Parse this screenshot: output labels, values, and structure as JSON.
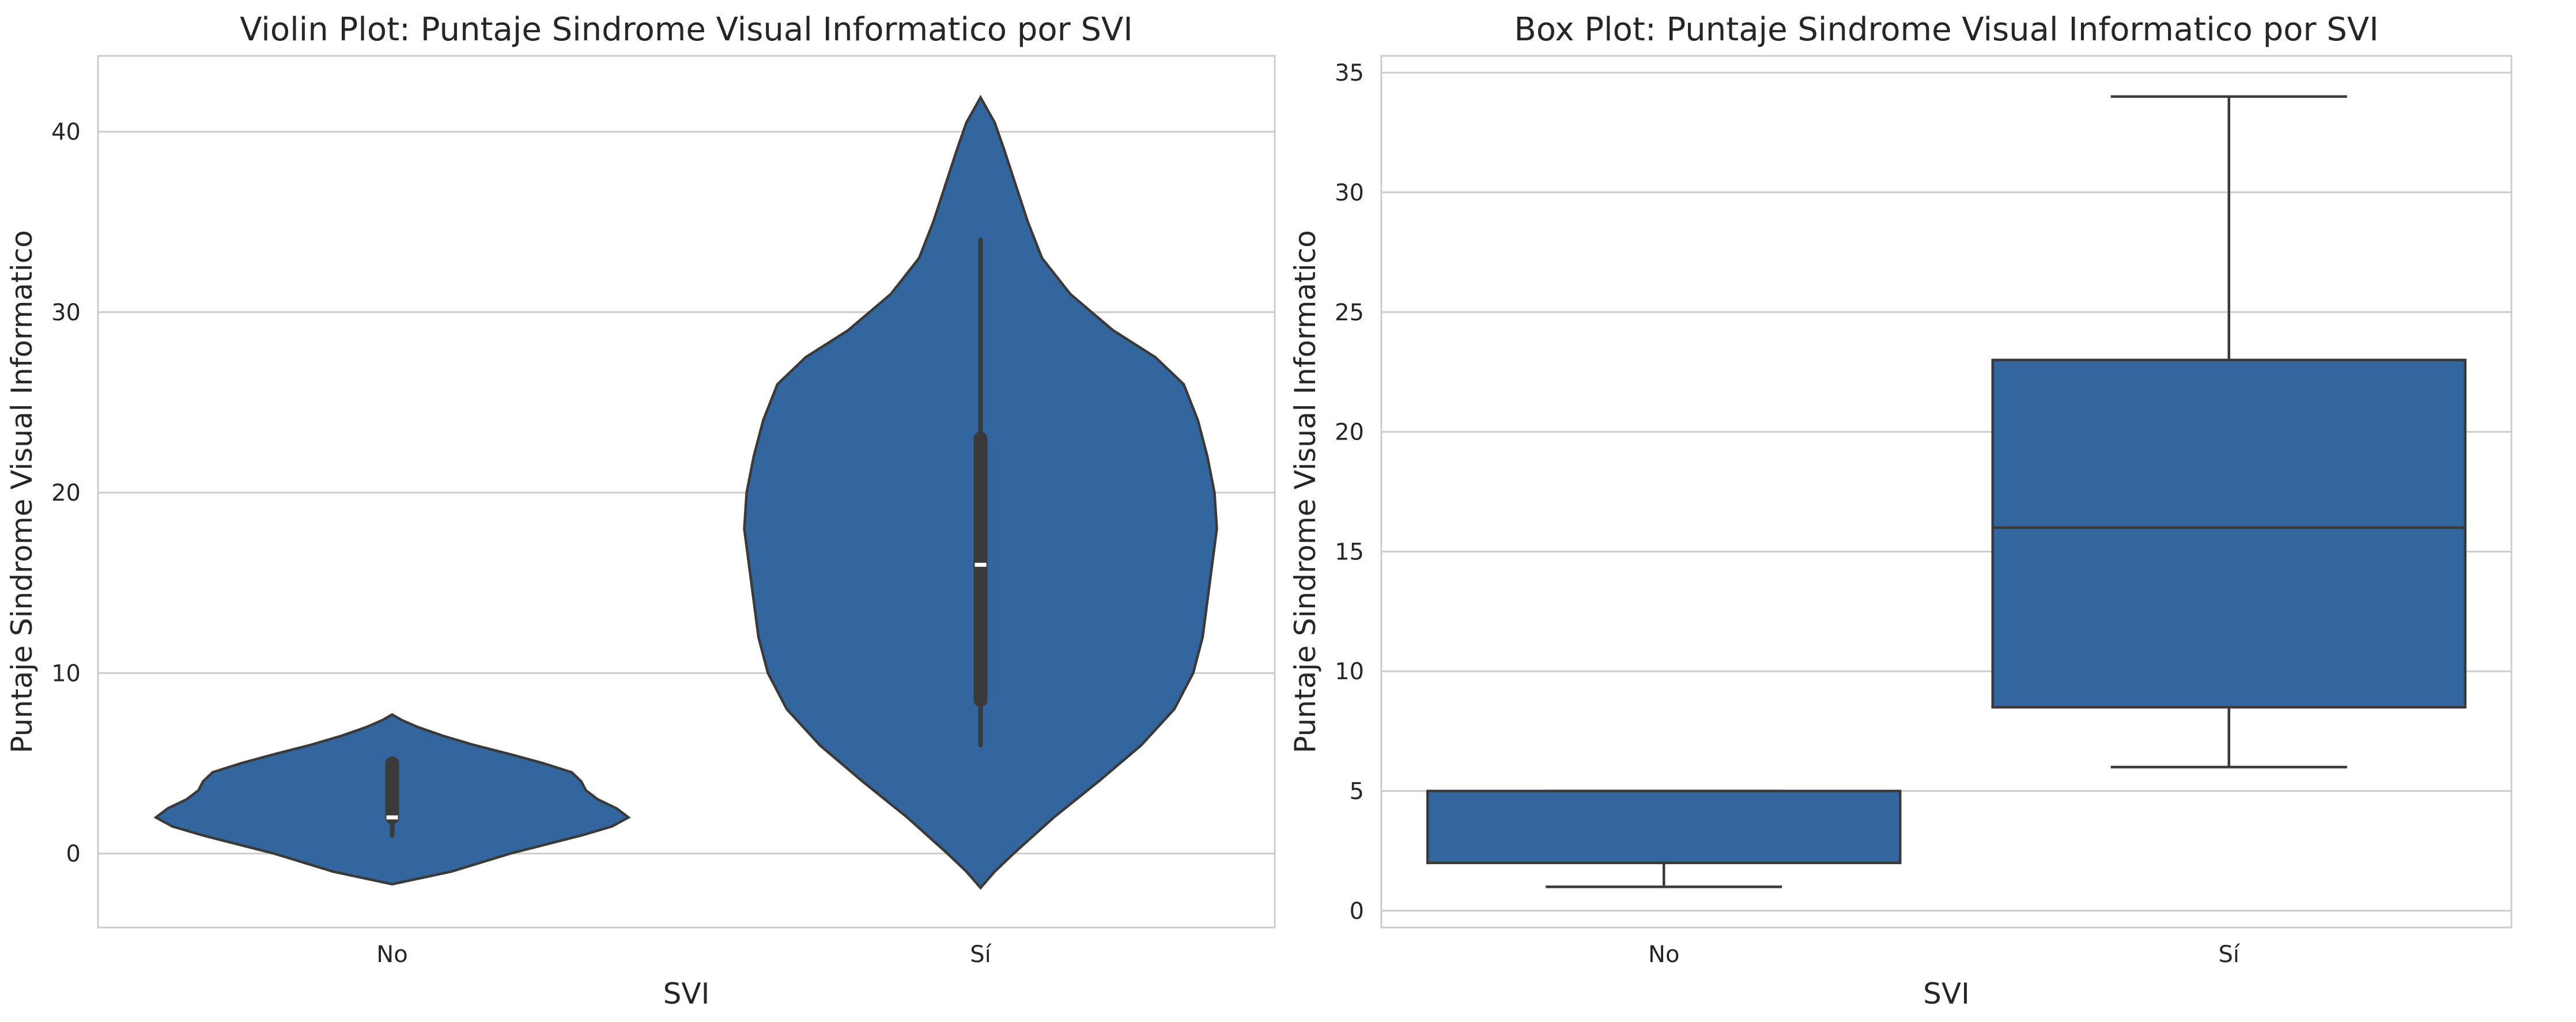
{
  "chart_data": [
    {
      "type": "violin",
      "title": "Violin Plot: Puntaje Sindrome Visual Informatico por SVI",
      "xlabel": "SVI",
      "ylabel": "Puntaje Sindrome Visual Informatico",
      "ylim": [
        -4.1,
        44.2
      ],
      "yticks": [
        0,
        10,
        20,
        30,
        40
      ],
      "grid": "horizontal",
      "categories": [
        "No",
        "Sí"
      ],
      "series": [
        {
          "category": "No",
          "min": 1,
          "q1": 2,
          "median": 2,
          "q3": 5,
          "max": 5,
          "kde_range": [
            -1.7,
            7.7
          ],
          "density": [
            [
              -1.7,
              0.0
            ],
            [
              -1.0,
              0.25
            ],
            [
              0.0,
              0.5
            ],
            [
              1.0,
              0.8
            ],
            [
              1.5,
              0.93
            ],
            [
              2.0,
              1.0
            ],
            [
              2.5,
              0.95
            ],
            [
              3.0,
              0.87
            ],
            [
              3.5,
              0.82
            ],
            [
              4.0,
              0.8
            ],
            [
              4.5,
              0.76
            ],
            [
              5.0,
              0.64
            ],
            [
              5.5,
              0.5
            ],
            [
              6.0,
              0.35
            ],
            [
              6.5,
              0.22
            ],
            [
              7.0,
              0.11
            ],
            [
              7.4,
              0.04
            ],
            [
              7.7,
              0.0
            ]
          ]
        },
        {
          "category": "Sí",
          "min": 6,
          "q1": 8.5,
          "median": 16,
          "q3": 23,
          "max": 34,
          "kde_range": [
            -1.9,
            41.9
          ],
          "density": [
            [
              -1.9,
              0.0
            ],
            [
              -1.0,
              0.06
            ],
            [
              0.0,
              0.14
            ],
            [
              2.0,
              0.31
            ],
            [
              4.0,
              0.5
            ],
            [
              6.0,
              0.68
            ],
            [
              8.0,
              0.82
            ],
            [
              10.0,
              0.9
            ],
            [
              12.0,
              0.94
            ],
            [
              14.0,
              0.96
            ],
            [
              16.0,
              0.98
            ],
            [
              18.0,
              1.0
            ],
            [
              20.0,
              0.99
            ],
            [
              22.0,
              0.96
            ],
            [
              24.0,
              0.92
            ],
            [
              26.0,
              0.86
            ],
            [
              27.5,
              0.74
            ],
            [
              29.0,
              0.56
            ],
            [
              31.0,
              0.38
            ],
            [
              33.0,
              0.26
            ],
            [
              35.0,
              0.2
            ],
            [
              37.0,
              0.15
            ],
            [
              39.0,
              0.1
            ],
            [
              40.5,
              0.06
            ],
            [
              41.9,
              0.0
            ]
          ]
        }
      ],
      "color": "#33669e"
    },
    {
      "type": "box",
      "title": "Box Plot: Puntaje Sindrome Visual Informatico por SVI",
      "xlabel": "SVI",
      "ylabel": "Puntaje Sindrome Visual Informatico",
      "ylim": [
        -0.7,
        35.7
      ],
      "yticks": [
        0,
        5,
        10,
        15,
        20,
        25,
        30,
        35
      ],
      "grid": "horizontal",
      "categories": [
        "No",
        "Sí"
      ],
      "series": [
        {
          "category": "No",
          "min": 1,
          "q1": 2,
          "median": 2,
          "q3": 5,
          "max": 5
        },
        {
          "category": "Sí",
          "min": 6,
          "q1": 8.5,
          "median": 16,
          "q3": 23,
          "max": 34
        }
      ],
      "color": "#33669e"
    }
  ]
}
